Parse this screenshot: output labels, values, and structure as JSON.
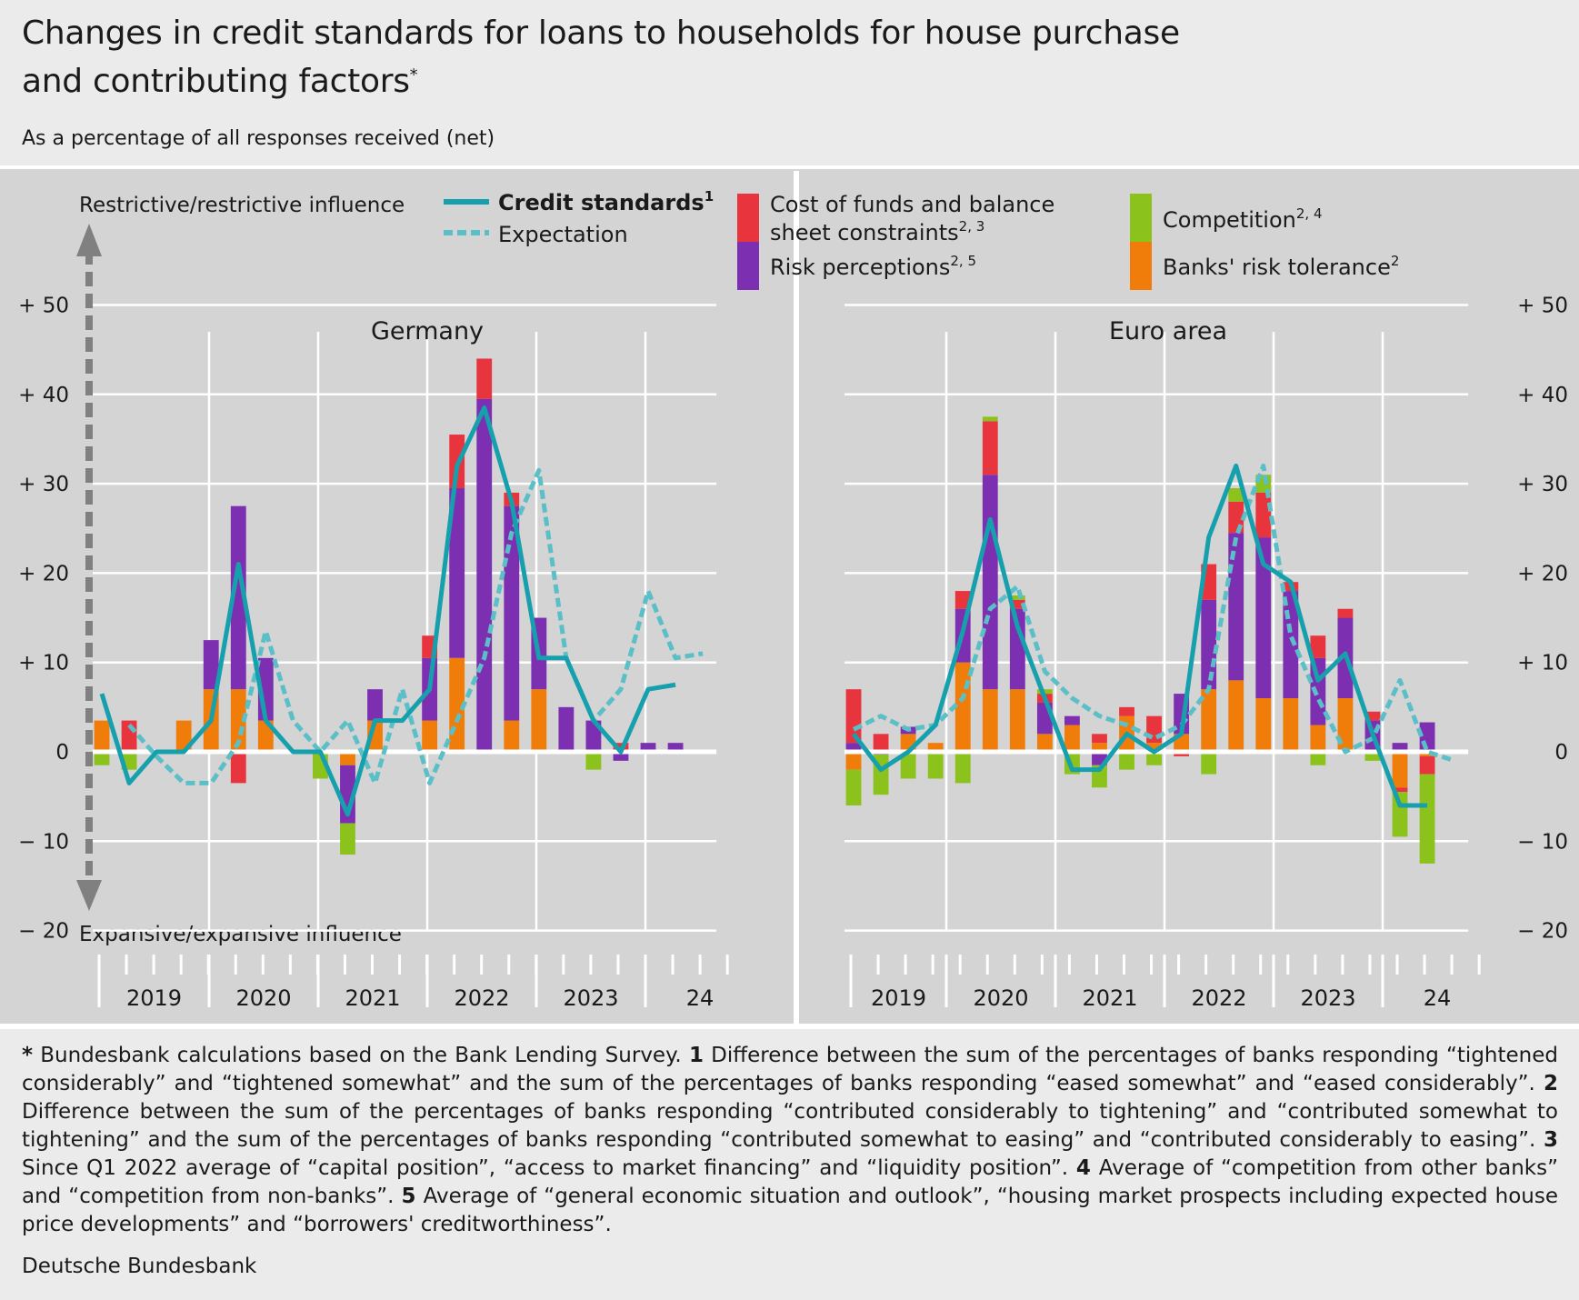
{
  "title_line1": "Changes in credit standards for loans to households for house purchase",
  "title_line2": "and contributing factors",
  "title_marker": "*",
  "subtitle": "As a percentage of all responses received (net)",
  "colors": {
    "background": "#ebebeb",
    "panel": "#d4d4d4",
    "credit_standards": "#16a0ad",
    "expectation": "#5bbfc8",
    "cost_of_funds": "#e8343d",
    "risk_perceptions": "#7c2fb0",
    "competition": "#8cc21c",
    "risk_tolerance": "#f07d0a",
    "axis_arrow": "#808080"
  },
  "legend": {
    "credit_standards": "Credit standards",
    "credit_standards_note": "1",
    "expectation": "Expectation",
    "cost_of_funds_line1": "Cost of funds and balance",
    "cost_of_funds_line2": "sheet constraints",
    "cost_of_funds_note": "2, 3",
    "risk_perceptions": "Risk perceptions",
    "risk_perceptions_note": "2, 5",
    "competition": "Competition",
    "competition_note": "2, 4",
    "risk_tolerance": "Banks' risk tolerance",
    "risk_tolerance_note": "2"
  },
  "axis_note_top": "Restrictive/restrictive influence",
  "axis_note_bottom": "Expansive/expansive influence",
  "y_ticks": [
    "+ 50",
    "+ 40",
    "+ 30",
    "+ 20",
    "+ 10",
    "0",
    "− 10",
    "− 20"
  ],
  "footnote": {
    "star": "*",
    "t0": " Bundesbank calculations based on the Bank Lending Survey. ",
    "n1": "1",
    "t1": " Difference between the sum of the percentages of banks responding “tightened considerably” and “tightened somewhat” and the sum of the percentages of banks responding “eased somewhat” and “eased considerably”. ",
    "n2": "2",
    "t2": " Difference between the sum of the percentages of banks responding “contributed considerably to tightening” and “contributed somewhat to tightening” and the sum of the percentages of banks responding “contributed somewhat to easing” and “contributed considerably to easing”. ",
    "n3": "3",
    "t3": " Since Q1 2022 average of “capital position”, “access to market financing” and “liquidity position”. ",
    "n4": "4",
    "t4": " Average of “competition from other banks” and “competition from non-banks”. ",
    "n5": "5",
    "t5": " Average of “general economic situation and outlook”, “housing market prospects including expected house price developments” and  “borrowers' creditworthiness”."
  },
  "source": "Deutsche Bundesbank",
  "chart_data": [
    {
      "type": "bar",
      "title": "Germany",
      "ylim": [
        -20,
        50
      ],
      "year_labels": [
        "2019",
        "2020",
        "2021",
        "2022",
        "2023",
        "24"
      ],
      "quarters": [
        "2019 Q1",
        "2019 Q2",
        "2019 Q3",
        "2019 Q4",
        "2020 Q1",
        "2020 Q2",
        "2020 Q3",
        "2020 Q4",
        "2021 Q1",
        "2021 Q2",
        "2021 Q3",
        "2021 Q4",
        "2022 Q1",
        "2022 Q2",
        "2022 Q3",
        "2022 Q4",
        "2023 Q1",
        "2023 Q2",
        "2023 Q3",
        "2023 Q4",
        "2024 Q1",
        "2024 Q2"
      ],
      "series": [
        {
          "name": "Banks' risk tolerance",
          "values": [
            3.5,
            0,
            0,
            3.5,
            7,
            7,
            3.5,
            0,
            0,
            -1.5,
            3.5,
            0,
            3.5,
            10.5,
            0,
            3.5,
            7,
            0,
            0,
            0,
            0,
            0
          ]
        },
        {
          "name": "Risk perceptions",
          "values": [
            0,
            0,
            0,
            0,
            5.5,
            20.5,
            7,
            0,
            0,
            -6.5,
            3.5,
            0,
            7,
            19,
            39.5,
            24,
            8,
            5,
            3.5,
            -1,
            1,
            1
          ]
        },
        {
          "name": "Cost of funds and balance sheet constraints",
          "values": [
            0,
            3.5,
            0,
            0,
            0,
            -3.5,
            0,
            0,
            0,
            0,
            0,
            0,
            2.5,
            6,
            4.5,
            1.5,
            0,
            0,
            0,
            1,
            0,
            0
          ]
        },
        {
          "name": "Competition",
          "values": [
            -1.5,
            -2,
            0,
            0,
            0,
            0,
            0,
            0,
            -3,
            -3.5,
            0,
            0,
            0,
            0,
            0,
            0,
            0,
            0,
            -2,
            0,
            0,
            0
          ]
        }
      ],
      "credit_standards": [
        6.5,
        -3.5,
        0,
        0,
        3.5,
        21,
        3.5,
        0,
        0,
        -7,
        3.5,
        3.5,
        7,
        32,
        38.5,
        28,
        10.5,
        10.5,
        3.5,
        0,
        7,
        7.5
      ],
      "expectation": [
        null,
        3,
        -0.5,
        -3.5,
        -3.5,
        1,
        13.5,
        3.5,
        0,
        3.5,
        -3.5,
        7,
        -3.5,
        3.5,
        10.5,
        24.5,
        31.5,
        10.5,
        3.5,
        7,
        18,
        10.5,
        11
      ]
    },
    {
      "type": "bar",
      "title": "Euro area",
      "ylim": [
        -20,
        50
      ],
      "year_labels": [
        "2019",
        "2020",
        "2021",
        "2022",
        "2023",
        "24"
      ],
      "quarters": [
        "2019 Q1",
        "2019 Q2",
        "2019 Q3",
        "2019 Q4",
        "2020 Q1",
        "2020 Q2",
        "2020 Q3",
        "2020 Q4",
        "2021 Q1",
        "2021 Q2",
        "2021 Q3",
        "2021 Q4",
        "2022 Q1",
        "2022 Q2",
        "2022 Q3",
        "2022 Q4",
        "2023 Q1",
        "2023 Q2",
        "2023 Q3",
        "2023 Q4",
        "2024 Q1",
        "2024 Q2"
      ],
      "series": [
        {
          "name": "Banks' risk tolerance",
          "values": [
            -2,
            0,
            2,
            1,
            10,
            7,
            7,
            2,
            3,
            1,
            4,
            1,
            2,
            7,
            8,
            6,
            6,
            3,
            6,
            0,
            -4,
            -0.5
          ]
        },
        {
          "name": "Risk perceptions",
          "values": [
            1,
            -0.3,
            0.8,
            0,
            6,
            24,
            9,
            3.5,
            1,
            -1.5,
            0,
            0,
            4.5,
            10,
            16.5,
            18,
            12,
            7.5,
            9,
            3.5,
            1,
            3.3
          ]
        },
        {
          "name": "Cost of funds and balance sheet constraints",
          "values": [
            6,
            2,
            0,
            0,
            2,
            6,
            1,
            1,
            0,
            1,
            1,
            3,
            -0.5,
            4,
            3.5,
            5,
            1,
            2.5,
            1,
            1,
            -0.5,
            -2
          ]
        },
        {
          "name": "Competition",
          "values": [
            -4,
            -4.5,
            -3,
            -3,
            -3.5,
            0.5,
            0.5,
            0.5,
            -2.5,
            -2.5,
            -2,
            -1.5,
            0,
            -2.5,
            1.5,
            2,
            0,
            -1.5,
            0,
            -1,
            -5,
            -10
          ]
        }
      ],
      "credit_standards": [
        2,
        -2,
        0,
        3,
        13.5,
        26,
        14,
        6,
        -2,
        -2,
        2,
        0,
        2,
        24,
        32,
        21,
        19,
        8,
        11,
        2,
        -6,
        -6
      ],
      "expectation": [
        2.5,
        4,
        2.5,
        3,
        6,
        16,
        18.5,
        9,
        6,
        4,
        3,
        1.5,
        3,
        7,
        24,
        32,
        13,
        6,
        0,
        1.5,
        8,
        0,
        -1
      ]
    }
  ]
}
